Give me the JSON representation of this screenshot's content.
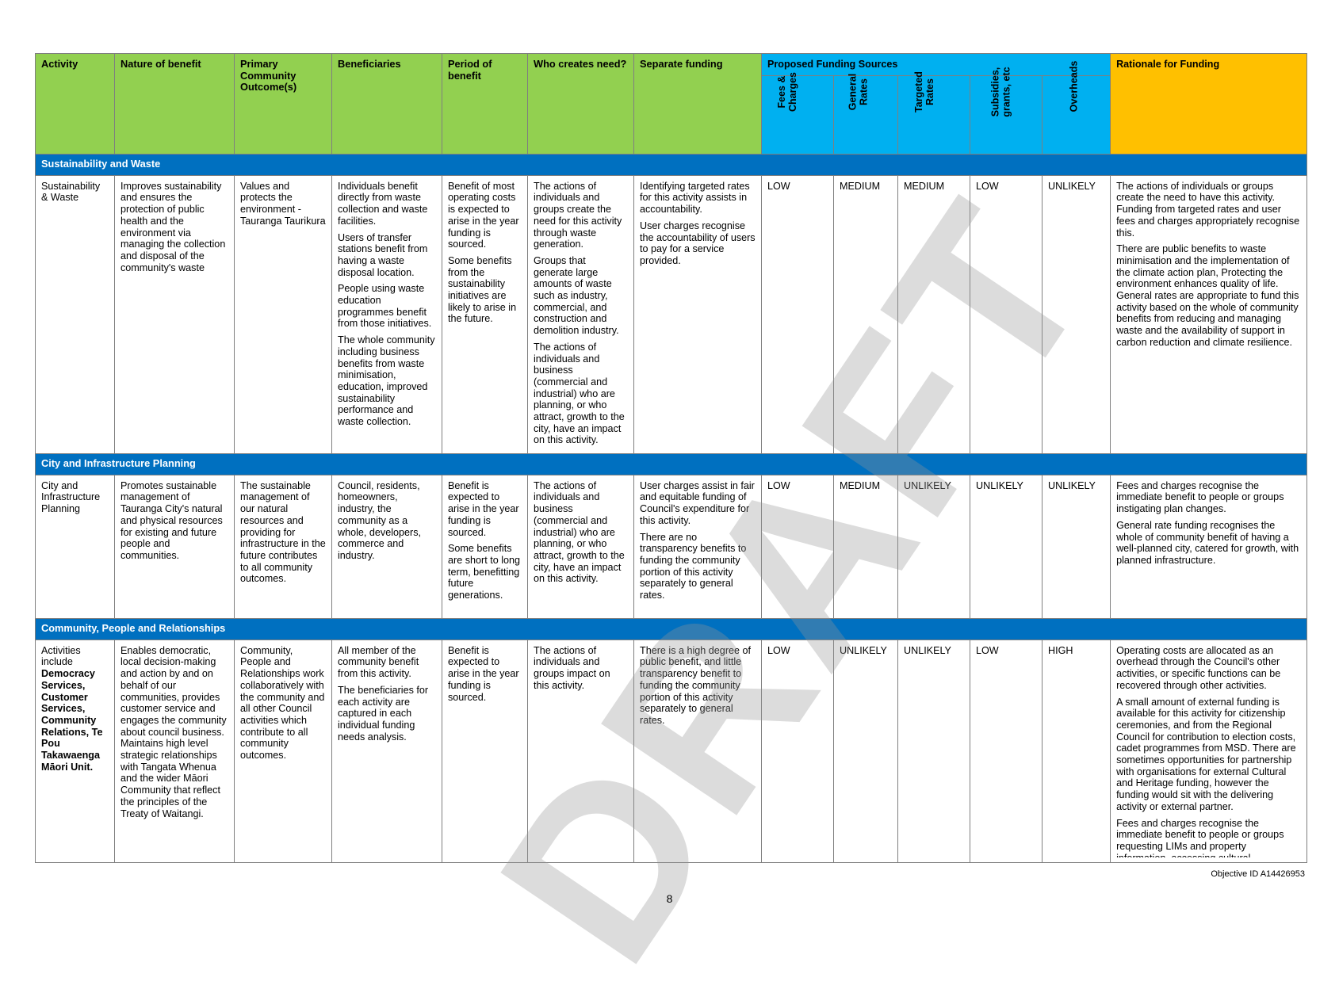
{
  "headers": {
    "activity": "Activity",
    "nature": "Nature of benefit",
    "outcome": "Primary Community Outcome(s)",
    "beneficiaries": "Beneficiaries",
    "period": "Period of benefit",
    "who": "Who creates need?",
    "separate": "Separate funding",
    "proposed": "Proposed Funding Sources",
    "rationale": "Rationale for Funding",
    "fees_l1": "Fees &",
    "fees_l2": "Charges",
    "general_l1": "General",
    "general_l2": "Rates",
    "targeted_l1": "Targeted",
    "targeted_l2": "Rates",
    "subsidies_l1": "Subsidies,",
    "subsidies_l2": "grants, etc",
    "overheads": "Overheads"
  },
  "sections": {
    "s1": "Sustainability and Waste",
    "s2": "City and Infrastructure Planning",
    "s3": "Community, People and Relationships"
  },
  "row1": {
    "activity": "Sustainability & Waste",
    "nature": "Improves sustainability and ensures the protection of public health and the environment via managing the collection and disposal of the community's waste",
    "outcome": "Values and protects the environment - Tauranga Taurikura",
    "ben1": "Individuals benefit directly from waste collection and waste facilities.",
    "ben2": "Users of transfer stations benefit from having a waste disposal location.",
    "ben3": "People using waste education programmes benefit from those initiatives.",
    "ben4": "The whole community including business benefits from waste minimisation, education, improved sustainability performance and waste collection.",
    "per1": "Benefit of most operating costs is expected to arise in the year funding is sourced.",
    "per2": "Some benefits from the sustainability initiatives are likely to arise in the future.",
    "who1": "The actions of individuals and groups create the need for this activity through waste generation.",
    "who2": "Groups that generate large amounts of waste such as industry, commercial, and construction and demolition industry.",
    "who3": "The actions of individuals and business (commercial and industrial) who are planning, or who attract, growth to the city, have an impact on this activity.",
    "sep1": "Identifying targeted rates for this activity assists in accountability.",
    "sep2": "User charges recognise the accountability of users to pay for a service provided.",
    "fees": "LOW",
    "general": "MEDIUM",
    "targeted": "MEDIUM",
    "subsidies": "LOW",
    "overheads": "UNLIKELY",
    "rat1": "The actions of individuals or groups create the need to have this activity. Funding from targeted rates and user fees and charges appropriately recognise this.",
    "rat2": "There are public benefits to waste minimisation and the implementation of the climate action plan, Protecting the environment enhances quality of life. General rates are appropriate to fund this activity based on the whole of community benefits from reducing and managing waste and the availability of support in carbon reduction and climate resilience."
  },
  "row2": {
    "activity": "City and Infrastructure Planning",
    "nature": "Promotes sustainable management of Tauranga City's natural and physical resources for existing and future people and communities.",
    "outcome": "The sustainable management of our natural resources and providing for infrastructure in the future contributes to all community outcomes.",
    "ben1": "Council, residents, homeowners, industry, the community as a whole, developers, commerce and industry.",
    "per1": "Benefit is expected to arise in the year funding is sourced.",
    "per2": "Some benefits are short to long term, benefitting future generations.",
    "who1": "The actions of individuals and business (commercial and industrial) who are planning, or who attract, growth to the city, have an impact on this activity.",
    "sep1": "User charges assist in fair and equitable funding of Council's expenditure for this activity.",
    "sep2": "There are no transparency benefits to funding the community portion of this activity separately to general rates.",
    "fees": "LOW",
    "general": "MEDIUM",
    "targeted": "UNLIKELY",
    "subsidies": "UNLIKELY",
    "overheads": "UNLIKELY",
    "rat1": "Fees and charges recognise the immediate benefit to people or groups instigating plan changes.",
    "rat2": "General rate funding recognises the whole of community benefit of having a well-planned city, catered for growth, with planned infrastructure."
  },
  "row3": {
    "activity_pre": "Activities include",
    "activity_bold": "Democracy Services, Customer Services, Community Relations, Te Pou Takawaenga Māori Unit.",
    "nature": "Enables democratic, local decision-making and action by and on behalf of our communities, provides customer service and engages the community about council business. Maintains high level strategic relationships with Tangata Whenua and the wider Māori Community that reflect the principles of the Treaty of Waitangi.",
    "outcome": "Community, People and Relationships work collaboratively with the community and all other Council activities which contribute to all community outcomes.",
    "ben1": "All member of the community benefit from this activity.",
    "ben2": "The beneficiaries for each activity are captured in each individual funding needs analysis.",
    "per1": "Benefit is expected to arise in the year funding is sourced.",
    "who1": "The actions of individuals and groups impact on this activity.",
    "sep1": "There is a high degree of public benefit, and little transparency benefit to funding the community portion of this activity separately to general rates.",
    "fees": "LOW",
    "general": "UNLIKELY",
    "targeted": "UNLIKELY",
    "subsidies": "LOW",
    "overheads": "HIGH",
    "rat1": "Operating costs are allocated as an overhead through the Council's other activities, or specific functions can be recovered through other activities.",
    "rat2": "A small amount of external funding is available for this activity for citizenship ceremonies, and from the Regional Council for contribution to election costs, cadet programmes from MSD. There are sometimes opportunities for partnership with organisations for external Cultural and Heritage funding, however the funding would sit with the delivering activity or external partner.",
    "rat3": "Fees and charges recognise the immediate benefit to people or groups requesting LIMs and property information, accessing cultural"
  },
  "watermark": "DRAFT",
  "objective_id": "Objective ID A14426953",
  "page_number": "8",
  "colors": {
    "header_green": "#92d050",
    "header_blue": "#00b0f0",
    "header_yellow": "#ffc000",
    "section_blue": "#0070c0"
  }
}
